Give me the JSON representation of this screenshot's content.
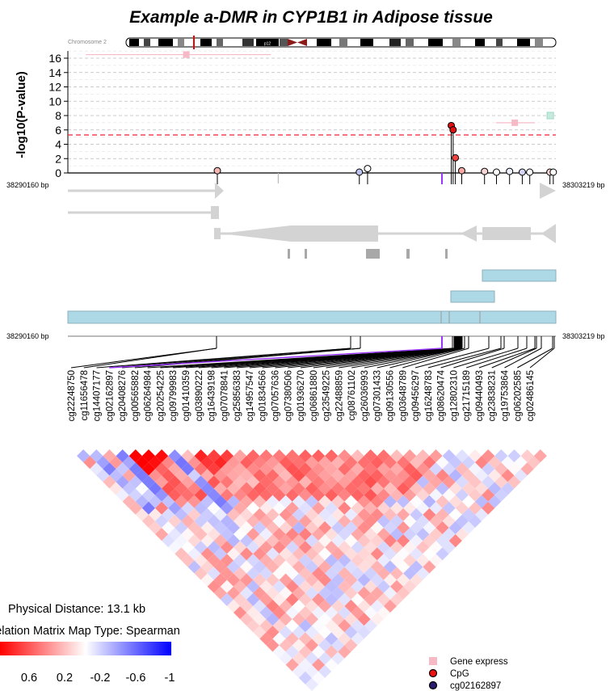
{
  "chart_data": [
    {
      "type": "scatter",
      "title": "Example a-DMR in CYP1B1 in Adipose tissue",
      "ylabel": "-log10(P-value)",
      "ylim": [
        0,
        17
      ],
      "yticks": [
        0,
        2,
        4,
        6,
        8,
        10,
        12,
        14,
        16
      ],
      "xlim": [
        38290160,
        38303219
      ],
      "x_start_label": "38290160 bp",
      "x_end_label": "38303219 bp",
      "chromosome_label": "Chromosome 2",
      "band_label": "p12",
      "significance_threshold": 5.3,
      "threshold_color": "#ee2233",
      "series": [
        {
          "name": "CpG",
          "points": [
            {
              "x": 38294160,
              "y": 0.2,
              "color": "#f4b6b0"
            },
            {
              "x": 38297960,
              "y": 0.0,
              "color": "#bcc3ee"
            },
            {
              "x": 38298180,
              "y": 0.5,
              "color": "#ffffff"
            },
            {
              "x": 38300420,
              "y": 6.5,
              "color": "#dd1111"
            },
            {
              "x": 38300470,
              "y": 5.9,
              "color": "#dd1111"
            },
            {
              "x": 38300530,
              "y": 2.0,
              "color": "#ee4444"
            },
            {
              "x": 38300700,
              "y": 0.2,
              "color": "#f4a9a4"
            },
            {
              "x": 38301310,
              "y": 0.1,
              "color": "#f6d6d4"
            },
            {
              "x": 38301630,
              "y": 0.0,
              "color": "#ffffff"
            },
            {
              "x": 38301980,
              "y": 0.1,
              "color": "#eceefa"
            },
            {
              "x": 38302320,
              "y": 0.0,
              "color": "#d6d6f4"
            },
            {
              "x": 38302520,
              "y": 0.0,
              "color": "#ffffff"
            },
            {
              "x": 38303060,
              "y": 0.0,
              "color": "#f6d6d4"
            },
            {
              "x": 38303150,
              "y": 0.0,
              "color": "#ffffff"
            }
          ]
        },
        {
          "name": "Gene express",
          "points": [
            {
              "x": 38293330,
              "y": 16.5,
              "xmin": 38290640,
              "xmax": 38295590,
              "color": "#f8b9c7"
            },
            {
              "x": 38302120,
              "y": 7.0,
              "xmin": 38301620,
              "xmax": 38302660,
              "color": "#f8b9c7"
            },
            {
              "x": 38303070,
              "y": 8.0,
              "color": "#c7eadf"
            }
          ]
        }
      ],
      "highlight_cpg": "cg02162897",
      "highlight_x": 38300170
    },
    {
      "type": "heatmap",
      "title": "Correlation Matrix Map Type: Spearman",
      "physical_distance_label": "Physical Distance: 13.1 kb",
      "colorbar_ticks": [
        "0.6",
        "0.2",
        "-0.2",
        "-0.6",
        "-1"
      ],
      "colorbar_colors": [
        "#ff0000",
        "#ffffff",
        "#0000ff"
      ],
      "categories": [
        "cg22248750",
        "cg11656478",
        "cg14407177",
        "cg02162897",
        "cg20408276",
        "cg00565882",
        "cg06264984",
        "cg20254225",
        "cg09799983",
        "cg01410359",
        "cg03890222",
        "cg16439198",
        "cg07078841",
        "cg25856383",
        "cg14957547",
        "cg01834566",
        "cg07057636",
        "cg07380506",
        "cg01936270",
        "cg06861880",
        "cg23549225",
        "cg22488859",
        "cg08761102",
        "cg26036993",
        "cg07301433",
        "cg09130556",
        "cg03648789",
        "cg09456297",
        "cg16248783",
        "cg08620474",
        "cg12802310",
        "cg21715189",
        "cg09440493",
        "cg23838231",
        "cg19753864",
        "cg06202585",
        "cg02486145"
      ],
      "seed": 7
    }
  ],
  "legend": [
    {
      "label": "Gene express",
      "color": "#f8b9c7"
    },
    {
      "label": "CpG",
      "color": "#ee1111"
    },
    {
      "label": "cg02162897",
      "color": "#2a1c6e"
    }
  ]
}
